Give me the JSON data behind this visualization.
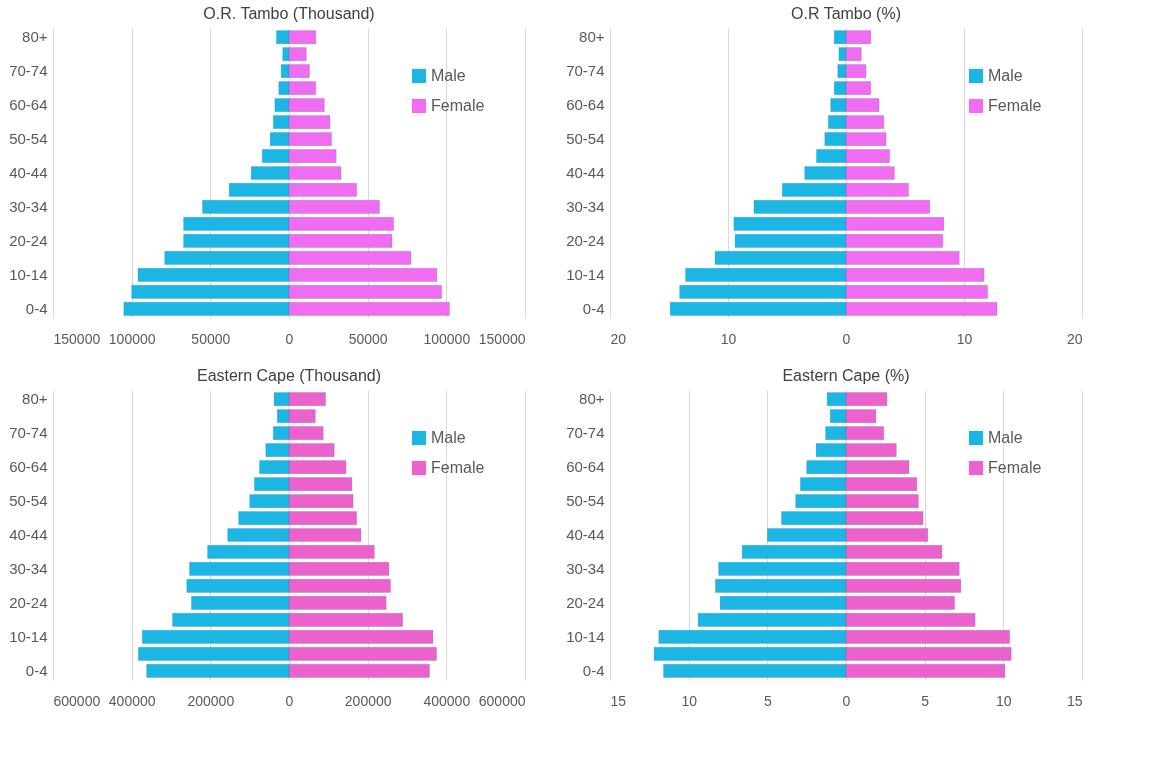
{
  "chart_data": [
    {
      "type": "bar",
      "orientation": "horizontal",
      "stacked": true,
      "title": "O.R. Tambo (Thousand)",
      "grid": "x",
      "legend": "top right",
      "categories": [
        "80+",
        null,
        "70-74",
        null,
        "60-64",
        null,
        "50-54",
        null,
        "40-44",
        null,
        "30-34",
        null,
        "20-24",
        null,
        "10-14",
        null,
        "0-4"
      ],
      "xlim": [
        -150000,
        150000
      ],
      "xticks": [
        {
          "value": -150000,
          "label": "150000"
        },
        {
          "value": -100000,
          "label": "100000"
        },
        {
          "value": -50000,
          "label": "50000"
        },
        0,
        50000,
        100000,
        150000
      ],
      "series": [
        {
          "name": "Male",
          "color": "#1cb6e4",
          "values": [
            -8000,
            -4000,
            -5000,
            -6500,
            -9000,
            -10000,
            -12000,
            -17000,
            -24000,
            -38000,
            -55000,
            -67000,
            -67000,
            -79000,
            -96000,
            -100000,
            -105000
          ]
        },
        {
          "name": "Female",
          "color": "#f06cf0",
          "values": [
            17000,
            11000,
            13000,
            17000,
            22500,
            26000,
            27000,
            30000,
            33000,
            43000,
            57500,
            66500,
            65500,
            77500,
            94000,
            97000,
            102000
          ]
        }
      ]
    },
    {
      "type": "bar",
      "orientation": "horizontal",
      "stacked": true,
      "title": "O.R Tambo (%)",
      "grid": "x",
      "legend": "top right",
      "categories": [
        "80+",
        null,
        "70-74",
        null,
        "60-64",
        null,
        "50-54",
        null,
        "40-44",
        null,
        "30-34",
        null,
        "20-24",
        null,
        "10-14",
        null,
        "0-4"
      ],
      "xlim": [
        -20,
        20
      ],
      "xticks": [
        {
          "value": -20,
          "label": "20"
        },
        {
          "value": -10,
          "label": "10"
        },
        0,
        10,
        20
      ],
      "series": [
        {
          "name": "Male",
          "color": "#1cb6e4",
          "values": [
            -1.0,
            -0.6,
            -0.7,
            -1.0,
            -1.3,
            -1.5,
            -1.8,
            -2.5,
            -3.5,
            -5.4,
            -7.8,
            -9.5,
            -9.4,
            -11.1,
            -13.6,
            -14.1,
            -14.9
          ]
        },
        {
          "name": "Female",
          "color": "#f06cf0",
          "values": [
            2.1,
            1.3,
            1.7,
            2.1,
            2.8,
            3.2,
            3.4,
            3.7,
            4.1,
            5.3,
            7.1,
            8.3,
            8.2,
            9.6,
            11.7,
            12.0,
            12.8
          ]
        }
      ]
    },
    {
      "type": "bar",
      "orientation": "horizontal",
      "stacked": true,
      "title": "Eastern Cape (Thousand)",
      "grid": "x",
      "legend": "top right",
      "categories": [
        "80+",
        null,
        "70-74",
        null,
        "60-64",
        null,
        "50-54",
        null,
        "40-44",
        null,
        "30-34",
        null,
        "20-24",
        null,
        "10-14",
        null,
        "0-4"
      ],
      "xlim": [
        -600000,
        600000
      ],
      "xticks": [
        {
          "value": -600000,
          "label": "600000"
        },
        {
          "value": -400000,
          "label": "400000"
        },
        {
          "value": -200000,
          "label": "200000"
        },
        0,
        200000,
        400000,
        600000
      ],
      "series": [
        {
          "name": "Male",
          "color": "#1cb6e4",
          "values": [
            -38000,
            -30000,
            -40000,
            -59000,
            -75000,
            -88000,
            -100000,
            -128000,
            -156000,
            -207000,
            -253000,
            -260000,
            -248000,
            -296000,
            -373000,
            -383000,
            -362000
          ]
        },
        {
          "name": "Female",
          "color": "#ec62cc",
          "values": [
            93000,
            67000,
            87000,
            115000,
            145000,
            160000,
            163000,
            172000,
            183000,
            217000,
            254000,
            258000,
            247000,
            289000,
            366000,
            375000,
            357000
          ]
        }
      ]
    },
    {
      "type": "bar",
      "orientation": "horizontal",
      "stacked": true,
      "title": "Eastern Cape (%)",
      "grid": "x",
      "legend": "top right",
      "categories": [
        "80+",
        null,
        "70-74",
        null,
        "60-64",
        null,
        "50-54",
        null,
        "40-44",
        null,
        "30-34",
        null,
        "20-24",
        null,
        "10-14",
        null,
        "0-4"
      ],
      "xlim": [
        -15,
        15
      ],
      "xticks": [
        {
          "value": -15,
          "label": "15"
        },
        {
          "value": -10,
          "label": "10"
        },
        {
          "value": -5,
          "label": "5"
        },
        0,
        5,
        10,
        15
      ],
      "series": [
        {
          "name": "Male",
          "color": "#1cb6e4",
          "values": [
            -1.2,
            -1.0,
            -1.3,
            -1.9,
            -2.5,
            -2.9,
            -3.2,
            -4.1,
            -5.0,
            -6.6,
            -8.1,
            -8.3,
            -8.0,
            -9.4,
            -11.9,
            -12.2,
            -11.6
          ]
        },
        {
          "name": "Female",
          "color": "#ec62cc",
          "values": [
            2.6,
            1.9,
            2.4,
            3.2,
            4.0,
            4.5,
            4.6,
            4.9,
            5.2,
            6.1,
            7.2,
            7.3,
            6.9,
            8.2,
            10.4,
            10.5,
            10.1
          ]
        }
      ]
    }
  ]
}
